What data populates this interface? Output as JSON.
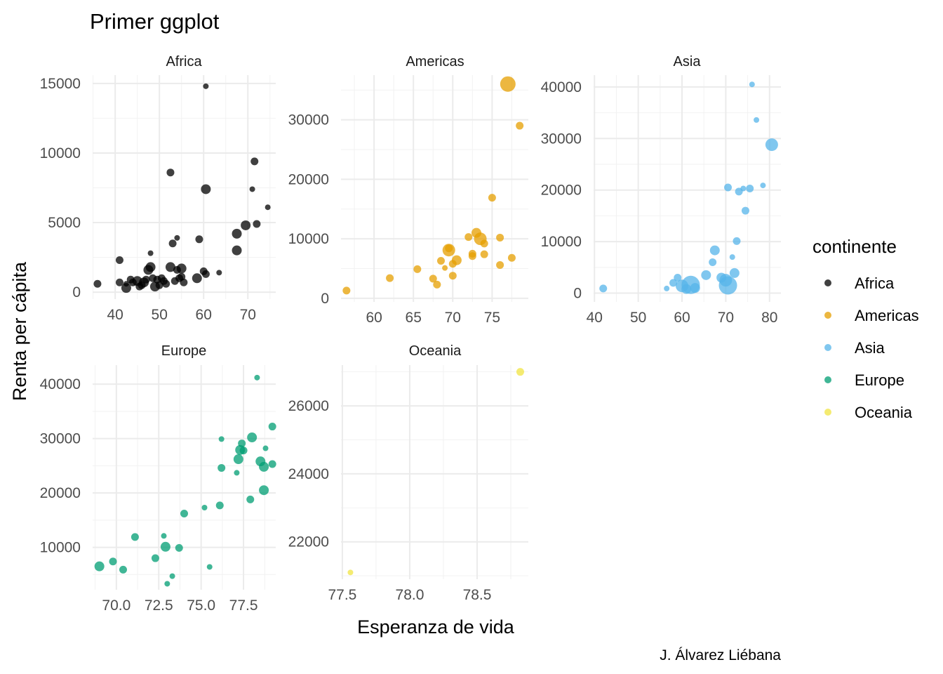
{
  "chart_data": {
    "type": "scatter",
    "title": "Primer ggplot",
    "xlabel": "Esperanza de vida",
    "ylabel": "Renta per cápita",
    "caption": "J. Álvarez Liébana",
    "legend": {
      "title": "continente",
      "position": "right",
      "entries": [
        "Africa",
        "Americas",
        "Asia",
        "Europe",
        "Oceania"
      ]
    },
    "colors": {
      "Africa": "#000000",
      "Americas": "#E69F00",
      "Asia": "#56B4E9",
      "Europe": "#009E73",
      "Oceania": "#F0E442"
    },
    "grid": true,
    "facets": [
      {
        "name": "Africa",
        "xlim": [
          34.9,
          76.3
        ],
        "ylim": [
          -500,
          15600
        ],
        "x_ticks": [
          40,
          50,
          60,
          70
        ],
        "x_tick_labels": [
          "40",
          "50",
          "60",
          "70"
        ],
        "y_ticks": [
          0,
          5000,
          10000,
          15000
        ],
        "y_tick_labels": [
          "0",
          "5000",
          "10000",
          "15000"
        ],
        "points": [
          {
            "x": 36,
            "y": 600,
            "s": 2
          },
          {
            "x": 41,
            "y": 2300,
            "s": 2
          },
          {
            "x": 41,
            "y": 700,
            "s": 2
          },
          {
            "x": 42.5,
            "y": 600,
            "s": 1
          },
          {
            "x": 42.5,
            "y": 300,
            "s": 3
          },
          {
            "x": 43.5,
            "y": 900,
            "s": 2
          },
          {
            "x": 44,
            "y": 700,
            "s": 2
          },
          {
            "x": 45,
            "y": 800,
            "s": 3
          },
          {
            "x": 45.5,
            "y": 400,
            "s": 2
          },
          {
            "x": 46,
            "y": 500,
            "s": 2
          },
          {
            "x": 46.5,
            "y": 700,
            "s": 3
          },
          {
            "x": 47,
            "y": 900,
            "s": 2
          },
          {
            "x": 47.5,
            "y": 1600,
            "s": 3
          },
          {
            "x": 48,
            "y": 1800,
            "s": 3
          },
          {
            "x": 48,
            "y": 2800,
            "s": 1
          },
          {
            "x": 48.5,
            "y": 1000,
            "s": 2
          },
          {
            "x": 49,
            "y": 400,
            "s": 3
          },
          {
            "x": 49.5,
            "y": 900,
            "s": 2
          },
          {
            "x": 50,
            "y": 500,
            "s": 2
          },
          {
            "x": 50.5,
            "y": 1000,
            "s": 2
          },
          {
            "x": 51,
            "y": 800,
            "s": 2
          },
          {
            "x": 51.5,
            "y": 600,
            "s": 2
          },
          {
            "x": 52.5,
            "y": 8600,
            "s": 2
          },
          {
            "x": 52.5,
            "y": 1800,
            "s": 3
          },
          {
            "x": 53,
            "y": 3500,
            "s": 2
          },
          {
            "x": 53.5,
            "y": 800,
            "s": 2
          },
          {
            "x": 54,
            "y": 1600,
            "s": 2
          },
          {
            "x": 54,
            "y": 3900,
            "s": 1
          },
          {
            "x": 54.5,
            "y": 1000,
            "s": 2
          },
          {
            "x": 55,
            "y": 1700,
            "s": 3
          },
          {
            "x": 55,
            "y": 1100,
            "s": 2
          },
          {
            "x": 55.5,
            "y": 700,
            "s": 2
          },
          {
            "x": 58.5,
            "y": 1000,
            "s": 3
          },
          {
            "x": 59,
            "y": 3800,
            "s": 2
          },
          {
            "x": 60,
            "y": 1500,
            "s": 2
          },
          {
            "x": 60.5,
            "y": 7400,
            "s": 3
          },
          {
            "x": 60.5,
            "y": 14800,
            "s": 1
          },
          {
            "x": 60.5,
            "y": 1300,
            "s": 2
          },
          {
            "x": 63.5,
            "y": 1400,
            "s": 1
          },
          {
            "x": 67.5,
            "y": 4200,
            "s": 3
          },
          {
            "x": 67.5,
            "y": 3000,
            "s": 3
          },
          {
            "x": 69.5,
            "y": 4800,
            "s": 3
          },
          {
            "x": 71,
            "y": 7400,
            "s": 1
          },
          {
            "x": 71.5,
            "y": 9400,
            "s": 2
          },
          {
            "x": 72,
            "y": 4900,
            "s": 2
          },
          {
            "x": 74.5,
            "y": 6100,
            "s": 1
          }
        ]
      },
      {
        "name": "Americas",
        "xlim": [
          55.8,
          79.6
        ],
        "ylim": [
          -600,
          37500
        ],
        "x_ticks": [
          60,
          65,
          70,
          75
        ],
        "x_tick_labels": [
          "60",
          "65",
          "70",
          "75"
        ],
        "y_ticks": [
          0,
          10000,
          20000,
          30000
        ],
        "y_tick_labels": [
          "0",
          "10000",
          "20000",
          "30000"
        ],
        "points": [
          {
            "x": 56.5,
            "y": 1300,
            "s": 2
          },
          {
            "x": 62,
            "y": 3400,
            "s": 2
          },
          {
            "x": 65.5,
            "y": 4900,
            "s": 2
          },
          {
            "x": 67.5,
            "y": 3300,
            "s": 2
          },
          {
            "x": 68,
            "y": 2300,
            "s": 2
          },
          {
            "x": 68.5,
            "y": 6300,
            "s": 2
          },
          {
            "x": 69,
            "y": 5100,
            "s": 1
          },
          {
            "x": 69.5,
            "y": 8400,
            "s": 2
          },
          {
            "x": 69.5,
            "y": 8100,
            "s": 4
          },
          {
            "x": 70,
            "y": 5800,
            "s": 2
          },
          {
            "x": 70,
            "y": 3800,
            "s": 2
          },
          {
            "x": 70.5,
            "y": 6400,
            "s": 3
          },
          {
            "x": 72,
            "y": 10300,
            "s": 2
          },
          {
            "x": 72.5,
            "y": 7500,
            "s": 2
          },
          {
            "x": 72.5,
            "y": 7100,
            "s": 2
          },
          {
            "x": 73,
            "y": 11000,
            "s": 3
          },
          {
            "x": 73.5,
            "y": 10000,
            "s": 4
          },
          {
            "x": 74,
            "y": 9200,
            "s": 2
          },
          {
            "x": 74,
            "y": 7400,
            "s": 2
          },
          {
            "x": 75,
            "y": 16900,
            "s": 2
          },
          {
            "x": 76,
            "y": 10200,
            "s": 2
          },
          {
            "x": 76,
            "y": 5600,
            "s": 2
          },
          {
            "x": 77,
            "y": 36000,
            "s": 5
          },
          {
            "x": 77.5,
            "y": 6800,
            "s": 2
          },
          {
            "x": 78.5,
            "y": 29000,
            "s": 2
          }
        ]
      },
      {
        "name": "Asia",
        "xlim": [
          39.8,
          82.6
        ],
        "ylim": [
          -1700,
          42300
        ],
        "x_ticks": [
          40,
          50,
          60,
          70,
          80
        ],
        "x_tick_labels": [
          "40",
          "50",
          "60",
          "70",
          "80"
        ],
        "y_ticks": [
          0,
          10000,
          20000,
          30000,
          40000
        ],
        "y_tick_labels": [
          "0",
          "10000",
          "20000",
          "30000",
          "40000"
        ],
        "points": [
          {
            "x": 42,
            "y": 900,
            "s": 2
          },
          {
            "x": 56.5,
            "y": 900,
            "s": 1
          },
          {
            "x": 58,
            "y": 2000,
            "s": 2
          },
          {
            "x": 59,
            "y": 3000,
            "s": 2
          },
          {
            "x": 60,
            "y": 1400,
            "s": 4
          },
          {
            "x": 61,
            "y": 800,
            "s": 3
          },
          {
            "x": 62,
            "y": 1600,
            "s": 6
          },
          {
            "x": 63,
            "y": 1000,
            "s": 3
          },
          {
            "x": 65.5,
            "y": 3500,
            "s": 3
          },
          {
            "x": 67,
            "y": 6000,
            "s": 2
          },
          {
            "x": 67.5,
            "y": 8300,
            "s": 3
          },
          {
            "x": 69,
            "y": 3000,
            "s": 3
          },
          {
            "x": 70,
            "y": 2500,
            "s": 4
          },
          {
            "x": 70.5,
            "y": 1500,
            "s": 6
          },
          {
            "x": 70.5,
            "y": 20500,
            "s": 2
          },
          {
            "x": 71.5,
            "y": 7000,
            "s": 1
          },
          {
            "x": 72,
            "y": 3900,
            "s": 3
          },
          {
            "x": 72.5,
            "y": 10100,
            "s": 2
          },
          {
            "x": 73,
            "y": 19700,
            "s": 2
          },
          {
            "x": 74,
            "y": 20300,
            "s": 1
          },
          {
            "x": 74.5,
            "y": 16000,
            "s": 2
          },
          {
            "x": 75.5,
            "y": 20300,
            "s": 2
          },
          {
            "x": 76,
            "y": 40500,
            "s": 1
          },
          {
            "x": 77,
            "y": 33600,
            "s": 1
          },
          {
            "x": 78.5,
            "y": 20900,
            "s": 1
          },
          {
            "x": 80.5,
            "y": 28800,
            "s": 4
          }
        ]
      },
      {
        "name": "Europe",
        "xlim": [
          68.6,
          79.4
        ],
        "ylim": [
          2200,
          43500
        ],
        "x_ticks": [
          70,
          72.5,
          75,
          77.5
        ],
        "x_tick_labels": [
          "70.0",
          "72.5",
          "75.0",
          "77.5"
        ],
        "y_ticks": [
          10000,
          20000,
          30000,
          40000
        ],
        "y_tick_labels": [
          "10000",
          "20000",
          "30000",
          "40000"
        ],
        "points": [
          {
            "x": 69,
            "y": 6500,
            "s": 3
          },
          {
            "x": 69.8,
            "y": 7400,
            "s": 2
          },
          {
            "x": 70.4,
            "y": 5900,
            "s": 2
          },
          {
            "x": 71.1,
            "y": 11900,
            "s": 2
          },
          {
            "x": 72.3,
            "y": 8000,
            "s": 2
          },
          {
            "x": 72.8,
            "y": 12100,
            "s": 1
          },
          {
            "x": 72.9,
            "y": 10100,
            "s": 3
          },
          {
            "x": 73,
            "y": 3300,
            "s": 1
          },
          {
            "x": 73.3,
            "y": 4700,
            "s": 1
          },
          {
            "x": 73.7,
            "y": 9900,
            "s": 2
          },
          {
            "x": 74,
            "y": 16200,
            "s": 2
          },
          {
            "x": 75.2,
            "y": 17300,
            "s": 1
          },
          {
            "x": 75.5,
            "y": 6400,
            "s": 1
          },
          {
            "x": 76.1,
            "y": 17700,
            "s": 2
          },
          {
            "x": 76.2,
            "y": 29900,
            "s": 1
          },
          {
            "x": 76.2,
            "y": 24600,
            "s": 2
          },
          {
            "x": 77.1,
            "y": 23700,
            "s": 1
          },
          {
            "x": 77.2,
            "y": 26200,
            "s": 3
          },
          {
            "x": 77.3,
            "y": 27900,
            "s": 3
          },
          {
            "x": 77.4,
            "y": 29100,
            "s": 2
          },
          {
            "x": 77.5,
            "y": 27800,
            "s": 2
          },
          {
            "x": 77.9,
            "y": 18800,
            "s": 2
          },
          {
            "x": 78.0,
            "y": 30200,
            "s": 3
          },
          {
            "x": 78.3,
            "y": 41200,
            "s": 1
          },
          {
            "x": 78.5,
            "y": 25800,
            "s": 3
          },
          {
            "x": 78.7,
            "y": 20500,
            "s": 3
          },
          {
            "x": 78.7,
            "y": 24800,
            "s": 3
          },
          {
            "x": 78.8,
            "y": 28200,
            "s": 1
          },
          {
            "x": 79.2,
            "y": 32200,
            "s": 2
          },
          {
            "x": 79.2,
            "y": 25300,
            "s": 2
          }
        ]
      },
      {
        "name": "Oceania",
        "xlim": [
          77.49,
          78.88
        ],
        "ylim": [
          20900,
          27200
        ],
        "x_ticks": [
          77.5,
          78.0,
          78.5
        ],
        "x_tick_labels": [
          "77.5",
          "78.0",
          "78.5"
        ],
        "y_ticks": [
          22000,
          24000,
          26000
        ],
        "y_tick_labels": [
          "22000",
          "24000",
          "26000"
        ],
        "points": [
          {
            "x": 77.56,
            "y": 21100,
            "s": 1
          },
          {
            "x": 78.82,
            "y": 27000,
            "s": 2
          }
        ]
      }
    ]
  }
}
